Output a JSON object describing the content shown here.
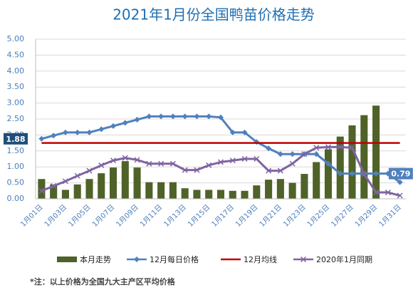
{
  "chart_data": {
    "type": "bar",
    "title": "2021年1月份全国鸭苗价格走势",
    "footnote": "*注：以上价格为全国九大主产区平均价格",
    "categories": [
      "1月01日",
      null,
      "1月03日",
      null,
      "1月05日",
      null,
      "1月07日",
      null,
      "1月09日",
      null,
      "1月11日",
      null,
      "1月13日",
      null,
      "1月15日",
      null,
      "1月17日",
      null,
      "1月19日",
      null,
      "1月21日",
      null,
      "1月23日",
      null,
      "1月25日",
      null,
      "1月27日",
      null,
      "1月29日",
      null,
      "1月31日"
    ],
    "ylim": [
      0,
      5
    ],
    "yticks": [
      {
        "value": 0,
        "label": "0.00"
      },
      {
        "value": 0.5,
        "label": "0.50"
      },
      {
        "value": 1,
        "label": "1.00"
      },
      {
        "value": 1.5,
        "label": "1.50"
      },
      {
        "value": 2,
        "label": "2.00"
      },
      {
        "value": 2.5,
        "label": "2.50"
      },
      {
        "value": 3,
        "label": "3.00"
      },
      {
        "value": 3.5,
        "label": "3.50"
      },
      {
        "value": 4,
        "label": "4.00"
      },
      {
        "value": 4.5,
        "label": "4.50"
      },
      {
        "value": 5,
        "label": "5.00"
      }
    ],
    "grid": true,
    "series": [
      {
        "name": "本月走势",
        "type": "bar",
        "color": "#4f6228",
        "values": [
          0.62,
          0.45,
          0.28,
          0.45,
          0.62,
          0.8,
          0.98,
          1.18,
          0.98,
          0.52,
          0.52,
          0.52,
          0.33,
          0.28,
          0.28,
          0.28,
          0.25,
          0.25,
          0.42,
          0.6,
          0.62,
          0.5,
          0.78,
          1.15,
          1.55,
          1.95,
          2.3,
          2.62,
          2.92,
          null,
          null
        ]
      },
      {
        "name": "12月每日价格",
        "type": "line",
        "marker": "diamond",
        "color": "#4f81bd",
        "values": [
          1.88,
          1.98,
          2.08,
          2.08,
          2.08,
          2.18,
          2.28,
          2.38,
          2.48,
          2.58,
          2.58,
          2.58,
          2.58,
          2.58,
          2.58,
          2.55,
          2.08,
          2.08,
          1.78,
          1.58,
          1.4,
          1.4,
          1.4,
          1.4,
          1.1,
          0.79,
          0.79,
          0.79,
          0.79,
          0.79,
          0.52
        ],
        "labeled_points": [
          0,
          29
        ]
      },
      {
        "name": "12月均线",
        "type": "line",
        "marker": "none",
        "color": "#c00000",
        "values": [
          1.75,
          1.75,
          1.75,
          1.75,
          1.75,
          1.75,
          1.75,
          1.75,
          1.75,
          1.75,
          1.75,
          1.75,
          1.75,
          1.75,
          1.75,
          1.75,
          1.75,
          1.75,
          1.75,
          1.75,
          1.75,
          1.75,
          1.75,
          1.75,
          1.75,
          1.75,
          1.75,
          1.75,
          1.75,
          1.75,
          1.75
        ]
      },
      {
        "name": "2020年1月同期",
        "type": "line",
        "marker": "x",
        "color": "#8064a2",
        "values": [
          0.25,
          0.4,
          0.55,
          0.72,
          0.88,
          1.05,
          1.2,
          1.28,
          1.22,
          1.1,
          1.1,
          1.1,
          0.9,
          0.9,
          1.05,
          1.15,
          1.2,
          1.25,
          1.25,
          0.88,
          0.88,
          1.1,
          1.4,
          1.6,
          1.62,
          1.62,
          1.6,
          0.78,
          0.2,
          0.2,
          0.1
        ]
      }
    ]
  }
}
